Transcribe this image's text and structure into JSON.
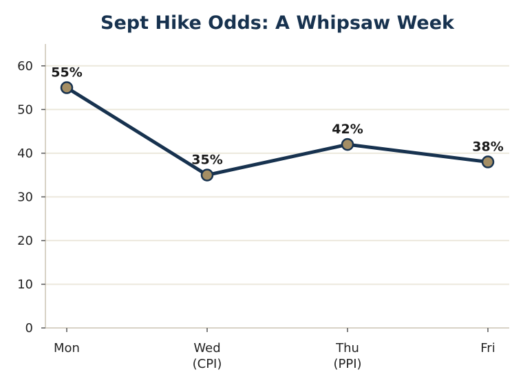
{
  "chart_data": {
    "type": "line",
    "title": "Sept Hike Odds: A Whipsaw Week",
    "categories": [
      [
        "Mon"
      ],
      [
        "Wed",
        "(CPI)"
      ],
      [
        "Thu",
        "(PPI)"
      ],
      [
        "Fri"
      ]
    ],
    "series": [
      {
        "values": [
          55,
          35,
          42,
          38
        ],
        "data_labels": [
          "55%",
          "35%",
          "42%",
          "38%"
        ]
      }
    ],
    "yticks": [
      0,
      10,
      20,
      30,
      40,
      50,
      60
    ],
    "ylim": [
      0,
      65
    ],
    "xlabel": "",
    "ylabel": "",
    "grid": "horizontal",
    "legend": "none",
    "colors": {
      "line": "#17324f",
      "marker_fill": "#a48e64",
      "marker_edge": "#17324f",
      "title": "#17324f"
    }
  }
}
